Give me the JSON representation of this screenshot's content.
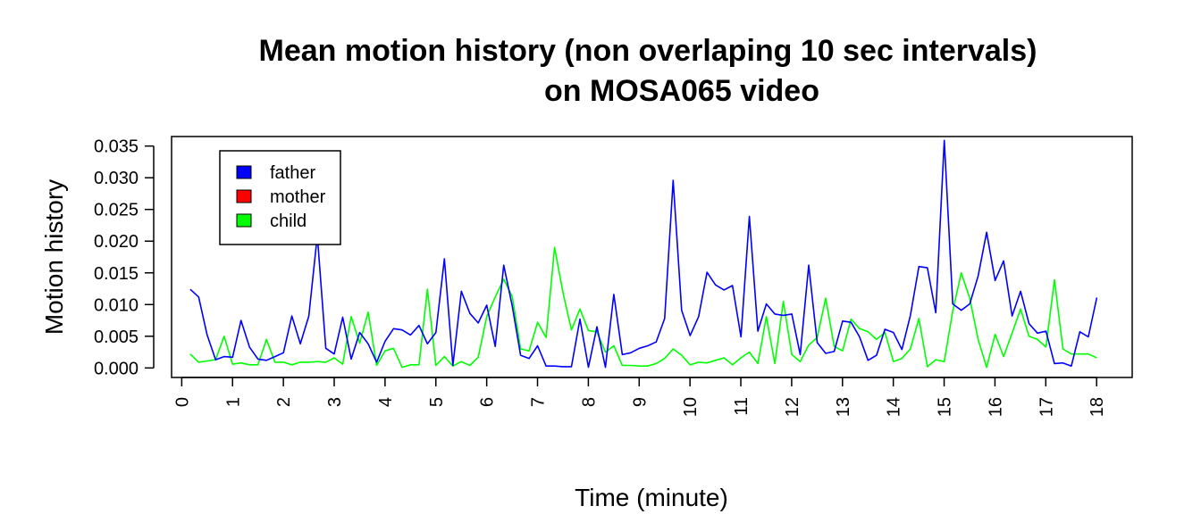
{
  "chart_data": {
    "type": "line",
    "title_line1": "Mean motion history (non overlaping 10 sec intervals)",
    "title_line2": "on MOSA065 video",
    "xlabel": "Time (minute)",
    "ylabel": "Motion history",
    "xlim": [
      -0.2,
      18.7
    ],
    "ylim": [
      -0.0015,
      0.0365
    ],
    "x_ticks": [
      0,
      1,
      2,
      3,
      4,
      5,
      6,
      7,
      8,
      9,
      10,
      11,
      12,
      13,
      14,
      15,
      16,
      17,
      18
    ],
    "x_tick_labels": [
      "0",
      "1",
      "2",
      "3",
      "4",
      "5",
      "6",
      "7",
      "8",
      "9",
      "10",
      "11",
      "12",
      "13",
      "14",
      "15",
      "16",
      "17",
      "18"
    ],
    "y_ticks": [
      0,
      0.005,
      0.01,
      0.015,
      0.02,
      0.025,
      0.03,
      0.035
    ],
    "y_tick_labels": [
      "0.000",
      "0.005",
      "0.010",
      "0.015",
      "0.020",
      "0.025",
      "0.030",
      "0.035"
    ],
    "grid": false,
    "legend_position": "top-left",
    "x_start": 0.1667,
    "x_step": 0.1667,
    "series": [
      {
        "name": "father",
        "color": "#0000ff",
        "values": [
          0.0124,
          0.0112,
          0.0052,
          0.0013,
          0.0018,
          0.0017,
          0.0075,
          0.0033,
          0.0014,
          0.0012,
          0.0018,
          0.0024,
          0.0082,
          0.0038,
          0.0082,
          0.0209,
          0.0031,
          0.0022,
          0.008,
          0.0014,
          0.0056,
          0.0038,
          0.0009,
          0.0042,
          0.0062,
          0.006,
          0.0052,
          0.0067,
          0.0038,
          0.0056,
          0.0172,
          0.0004,
          0.0121,
          0.0086,
          0.0071,
          0.0099,
          0.0034,
          0.0162,
          0.0098,
          0.002,
          0.0015,
          0.0035,
          0.0003,
          0.0003,
          0.0002,
          0.0002,
          0.0077,
          0.0001,
          0.0065,
          0.0001,
          0.0116,
          0.0021,
          0.0024,
          0.0031,
          0.0035,
          0.0041,
          0.0078,
          0.0296,
          0.0091,
          0.0051,
          0.0081,
          0.0151,
          0.0131,
          0.0123,
          0.013,
          0.0049,
          0.0239,
          0.0058,
          0.0101,
          0.0085,
          0.0083,
          0.0085,
          0.0021,
          0.0162,
          0.004,
          0.0023,
          0.0026,
          0.0074,
          0.0072,
          0.0049,
          0.0012,
          0.002,
          0.0061,
          0.0056,
          0.0029,
          0.0083,
          0.016,
          0.0158,
          0.0087,
          0.0359,
          0.0101,
          0.0091,
          0.0101,
          0.0145,
          0.0214,
          0.0138,
          0.0169,
          0.0082,
          0.0121,
          0.007,
          0.0055,
          0.0058,
          0.0007,
          0.0008,
          0.0003,
          0.0057,
          0.0049,
          0.0111
        ]
      },
      {
        "name": "mother",
        "color": "#ff0000",
        "values": []
      },
      {
        "name": "child",
        "color": "#00ff00",
        "values": [
          0.0022,
          0.0009,
          0.0011,
          0.0013,
          0.005,
          0.0006,
          0.0008,
          0.0005,
          0.0005,
          0.0045,
          0.0009,
          0.0009,
          0.0005,
          0.0009,
          0.0009,
          0.001,
          0.0009,
          0.0016,
          0.0006,
          0.0081,
          0.0039,
          0.0088,
          0.0004,
          0.0027,
          0.0031,
          0.0001,
          0.0005,
          0.0005,
          0.0124,
          0.0004,
          0.0018,
          0.0003,
          0.001,
          0.0004,
          0.0017,
          0.0081,
          0.0112,
          0.014,
          0.0113,
          0.003,
          0.0027,
          0.0072,
          0.0048,
          0.019,
          0.0119,
          0.006,
          0.0093,
          0.0059,
          0.0057,
          0.0025,
          0.0035,
          0.0004,
          0.0004,
          0.0003,
          0.0003,
          0.0007,
          0.0015,
          0.003,
          0.002,
          0.0005,
          0.0009,
          0.0008,
          0.0012,
          0.0016,
          0.0005,
          0.0016,
          0.0025,
          0.0007,
          0.0081,
          0.0007,
          0.0105,
          0.0021,
          0.001,
          0.0036,
          0.0048,
          0.011,
          0.0034,
          0.0027,
          0.0077,
          0.0062,
          0.0057,
          0.0045,
          0.0056,
          0.001,
          0.0015,
          0.003,
          0.0078,
          0.0002,
          0.0013,
          0.001,
          0.009,
          0.015,
          0.011,
          0.0045,
          0.0001,
          0.0053,
          0.0018,
          0.0055,
          0.0093,
          0.005,
          0.0045,
          0.0033,
          0.0139,
          0.003,
          0.0022,
          0.0022,
          0.0022,
          0.0016
        ]
      }
    ]
  }
}
